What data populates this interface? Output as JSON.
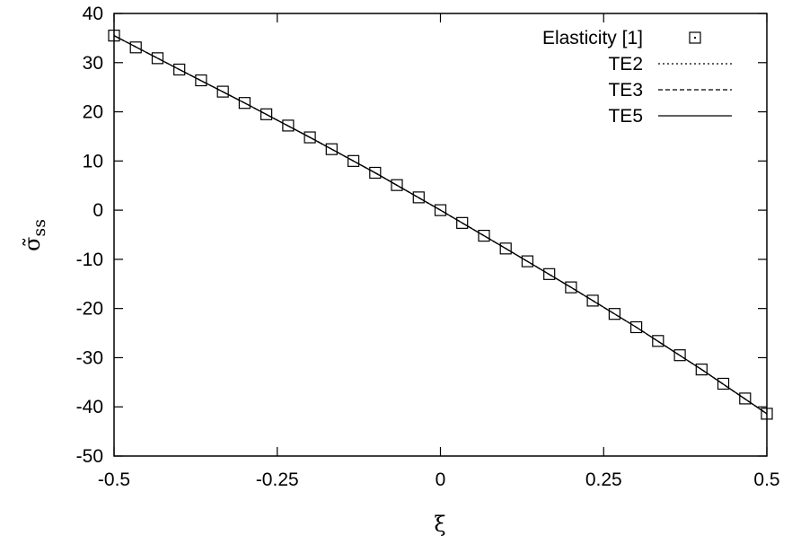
{
  "chart_data": {
    "type": "line",
    "title": "",
    "xlabel": "ξ",
    "ylabel": "σ̃",
    "ylabel_subscript": "ss",
    "xlim": [
      -0.5,
      0.5
    ],
    "ylim": [
      -50,
      40
    ],
    "xticks": [
      -0.5,
      -0.25,
      0,
      0.25,
      0.5
    ],
    "xtick_labels": [
      "-0.5",
      "-0.25",
      "0",
      "0.25",
      "0.5"
    ],
    "yticks": [
      -50,
      -40,
      -30,
      -20,
      -10,
      0,
      10,
      20,
      30,
      40
    ],
    "ytick_labels": [
      "-50",
      "-40",
      "-30",
      "-20",
      "-10",
      "0",
      "10",
      "20",
      "30",
      "40"
    ],
    "grid": false,
    "legend_position": "top-right",
    "series": [
      {
        "name": "Elasticity [1]",
        "style": "markers",
        "marker": "square-open",
        "x": [
          -0.5,
          -0.4667,
          -0.4333,
          -0.4,
          -0.3667,
          -0.3333,
          -0.3,
          -0.2667,
          -0.2333,
          -0.2,
          -0.1667,
          -0.1333,
          -0.1,
          -0.0667,
          -0.0333,
          0,
          0.0333,
          0.0667,
          0.1,
          0.1333,
          0.1667,
          0.2,
          0.2333,
          0.2667,
          0.3,
          0.3333,
          0.3667,
          0.4,
          0.4333,
          0.4667,
          0.5
        ],
        "y": [
          35.5,
          33.1,
          30.9,
          28.6,
          26.4,
          24.1,
          21.8,
          19.5,
          17.2,
          14.8,
          12.4,
          10.0,
          7.6,
          5.1,
          2.6,
          0.0,
          -2.6,
          -5.2,
          -7.8,
          -10.4,
          -13.0,
          -15.7,
          -18.4,
          -21.1,
          -23.8,
          -26.6,
          -29.5,
          -32.4,
          -35.3,
          -38.3,
          -41.4
        ]
      },
      {
        "name": "TE2",
        "style": "dotted",
        "x": [
          -0.5,
          -0.4,
          -0.3,
          -0.2,
          -0.1,
          0,
          0.1,
          0.2,
          0.3,
          0.4,
          0.5
        ],
        "y": [
          35.5,
          28.6,
          21.8,
          14.8,
          7.6,
          0.0,
          -7.8,
          -15.7,
          -23.8,
          -32.4,
          -41.4
        ]
      },
      {
        "name": "TE3",
        "style": "dashed",
        "x": [
          -0.5,
          -0.4,
          -0.3,
          -0.2,
          -0.1,
          0,
          0.1,
          0.2,
          0.3,
          0.4,
          0.5
        ],
        "y": [
          35.5,
          28.6,
          21.8,
          14.8,
          7.6,
          0.0,
          -7.8,
          -15.7,
          -23.8,
          -32.4,
          -41.4
        ]
      },
      {
        "name": "TE5",
        "style": "solid",
        "x": [
          -0.5,
          -0.4,
          -0.3,
          -0.2,
          -0.1,
          0,
          0.1,
          0.2,
          0.3,
          0.4,
          0.5
        ],
        "y": [
          35.5,
          28.6,
          21.8,
          14.8,
          7.6,
          0.0,
          -7.8,
          -15.7,
          -23.8,
          -32.4,
          -41.4
        ]
      }
    ]
  }
}
